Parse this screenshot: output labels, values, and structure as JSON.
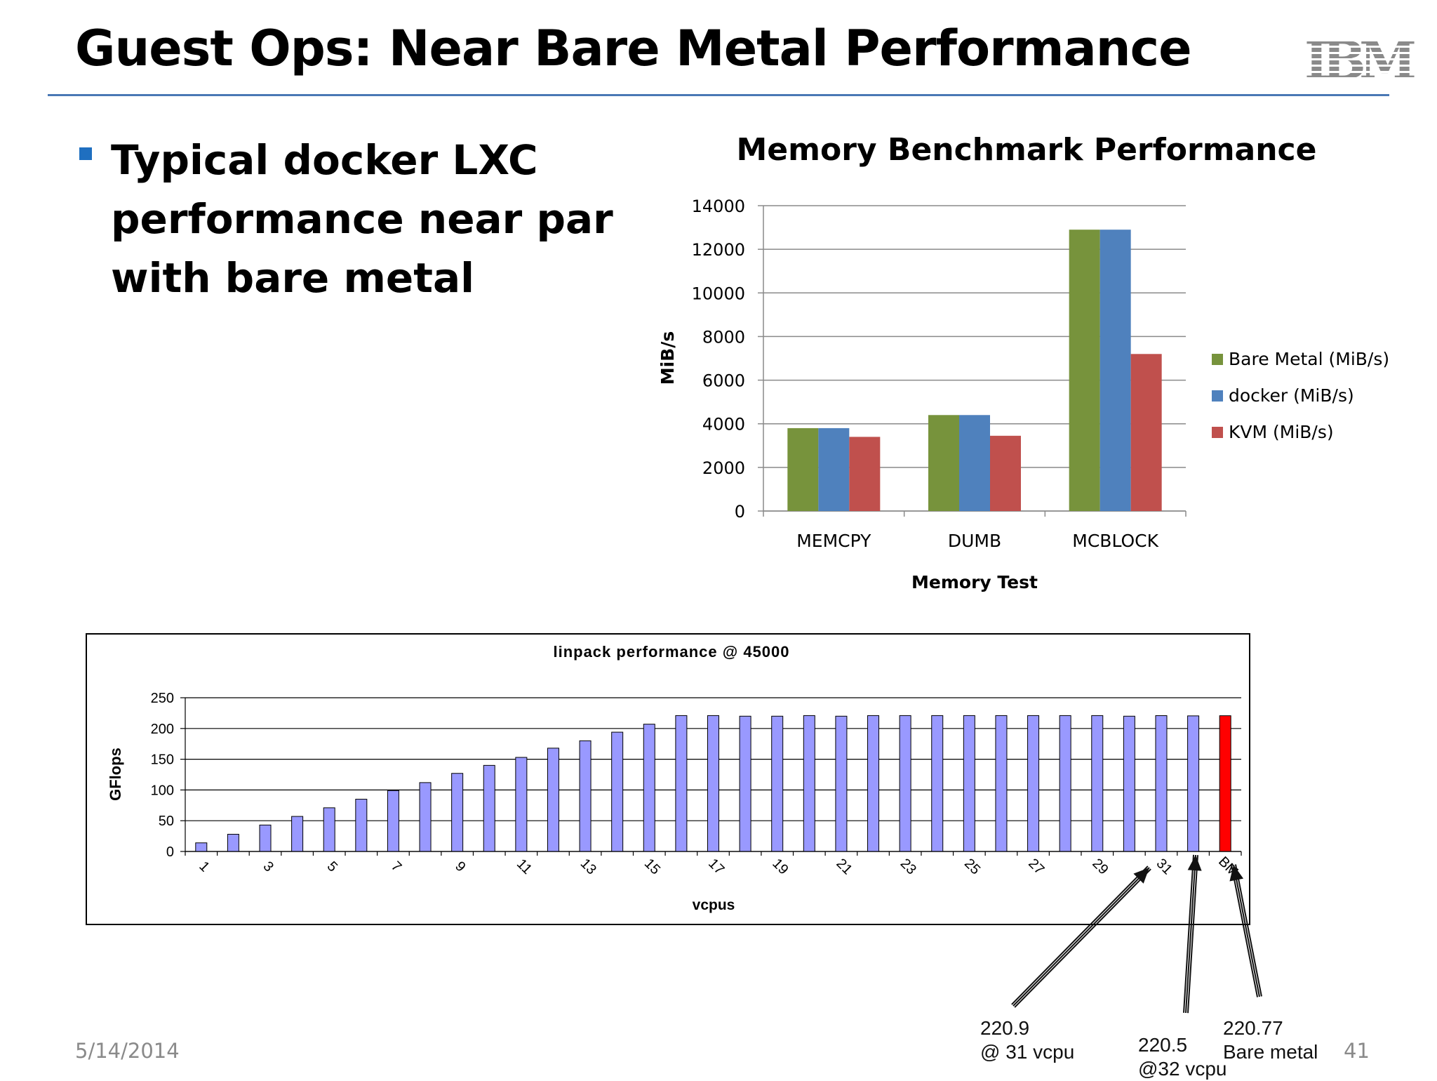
{
  "slide": {
    "title": "Guest Ops: Near Bare Metal Performance",
    "bullet": "Typical docker LXC performance near par with bare metal",
    "date": "5/14/2014",
    "page_number": "41",
    "logo": "IBM",
    "accent_color": "#4a78b5",
    "bullet_color": "#1f6fc0"
  },
  "chart_data": [
    {
      "type": "bar",
      "title": "Memory Benchmark Performance",
      "xlabel": "Memory Test",
      "ylabel": "MiB/s",
      "categories": [
        "MEMCPY",
        "DUMB",
        "MCBLOCK"
      ],
      "ylim": [
        0,
        14000
      ],
      "yticks": [
        0,
        2000,
        4000,
        6000,
        8000,
        10000,
        12000,
        14000
      ],
      "grid": true,
      "legend": "right",
      "series": [
        {
          "name": "Bare Metal (MiB/s)",
          "color": "#77933c",
          "values": [
            3800,
            4400,
            12900
          ]
        },
        {
          "name": "docker (MiB/s)",
          "color": "#4f81bd",
          "values": [
            3800,
            4400,
            12900
          ]
        },
        {
          "name": "KVM (MiB/s)",
          "color": "#c0504d",
          "values": [
            3400,
            3450,
            7200
          ]
        }
      ]
    },
    {
      "type": "bar",
      "title": "linpack performance @ 45000",
      "xlabel": "vcpus",
      "ylabel": "GFlops",
      "ylim": [
        0,
        250
      ],
      "yticks": [
        0,
        50,
        100,
        150,
        200,
        250
      ],
      "grid": true,
      "tick_labels": [
        "1",
        "3",
        "5",
        "7",
        "9",
        "11",
        "13",
        "15",
        "17",
        "19",
        "21",
        "23",
        "25",
        "27",
        "29",
        "31",
        "BM"
      ],
      "x": [
        "1",
        "2",
        "3",
        "4",
        "5",
        "6",
        "7",
        "8",
        "9",
        "10",
        "11",
        "12",
        "13",
        "14",
        "15",
        "16",
        "17",
        "18",
        "19",
        "20",
        "21",
        "22",
        "23",
        "24",
        "25",
        "26",
        "27",
        "28",
        "29",
        "30",
        "31",
        "32",
        "BM"
      ],
      "values": [
        14,
        28,
        43,
        57,
        71,
        85,
        99,
        112,
        127,
        140,
        153,
        168,
        180,
        194,
        207,
        221,
        221,
        220,
        220,
        221,
        220,
        221,
        221,
        221,
        221,
        221,
        221,
        221,
        221,
        220,
        220.9,
        220.5,
        220.77
      ],
      "bar_color": "#9999ff",
      "highlight_color": "#ff0000",
      "highlight": "BM",
      "annotations": [
        {
          "value": "220.9",
          "label": "@ 31 vcpu",
          "target": "31"
        },
        {
          "value": "220.5",
          "label": "@32 vcpu",
          "target": "32"
        },
        {
          "value": "220.77",
          "label": "Bare metal",
          "target": "BM"
        }
      ]
    }
  ]
}
